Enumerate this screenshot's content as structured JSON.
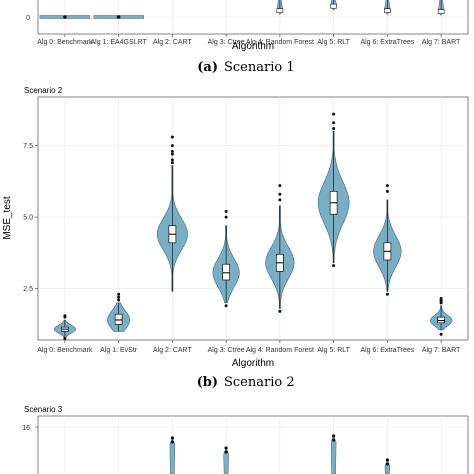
{
  "chart_data": [
    {
      "panel": "Scenario 1 (partial, top cropped)",
      "type": "violin",
      "xlabel": "Algorithm",
      "caption_letter": "(a)",
      "caption_text": "Scenario 1",
      "categories": [
        "Alg 0: Benchmark",
        "Alg 1: EA4GSLRT",
        "Alg 2: CART",
        "Alg 3: Ctree",
        "Alg 4: Random Forest",
        "Alg 5: RLT",
        "Alg 6: ExtraTrees",
        "Alg 7: BART"
      ],
      "ytick_labels": [
        "0"
      ],
      "medians": [
        0.0,
        0.0,
        null,
        null,
        0.35,
        0.6,
        0.35,
        0.3
      ],
      "shown": [
        true,
        true,
        false,
        false,
        true,
        true,
        true,
        true
      ]
    },
    {
      "title": "Scenario 2",
      "type": "violin",
      "xlabel": "Algorithm",
      "ylabel": "MSE_test",
      "caption_letter": "(b)",
      "caption_text": "Scenario 2",
      "ylim": [
        0.7,
        9.2
      ],
      "yticks": [
        2.5,
        5.0,
        7.5
      ],
      "ytick_labels": [
        "2.5",
        "5.0",
        "7.5"
      ],
      "categories": [
        "Alg 0: Benchmark",
        "Alg 1: EvStr",
        "Alg 2: CART",
        "Alg 3: Ctree",
        "Alg 4: Random Forest",
        "Alg 5: RLT",
        "Alg 6: ExtraTrees",
        "Alg 7: BART"
      ],
      "series": [
        {
          "min": 0.8,
          "q1": 1.0,
          "median": 1.08,
          "q3": 1.15,
          "max": 1.4,
          "outliers": [
            0.75,
            1.5,
            1.55
          ]
        },
        {
          "min": 1.0,
          "q1": 1.25,
          "median": 1.4,
          "q3": 1.6,
          "max": 2.0,
          "outliers": [
            2.1,
            2.2,
            2.3
          ]
        },
        {
          "min": 2.4,
          "q1": 4.1,
          "median": 4.4,
          "q3": 4.7,
          "max": 6.8,
          "outliers": [
            7.2,
            7.5,
            7.8,
            6.9,
            7.0,
            7.3
          ]
        },
        {
          "min": 2.0,
          "q1": 2.8,
          "median": 3.05,
          "q3": 3.35,
          "max": 4.7,
          "outliers": [
            5.0,
            5.2,
            1.9
          ]
        },
        {
          "min": 1.8,
          "q1": 3.1,
          "median": 3.4,
          "q3": 3.7,
          "max": 5.4,
          "outliers": [
            5.6,
            5.8,
            6.1,
            1.7
          ]
        },
        {
          "min": 3.4,
          "q1": 5.1,
          "median": 5.5,
          "q3": 5.9,
          "max": 8.0,
          "outliers": [
            8.3,
            8.6,
            3.3,
            8.1
          ]
        },
        {
          "min": 2.4,
          "q1": 3.5,
          "median": 3.8,
          "q3": 4.1,
          "max": 5.6,
          "outliers": [
            5.9,
            6.1,
            2.3
          ]
        },
        {
          "min": 1.05,
          "q1": 1.3,
          "median": 1.38,
          "q3": 1.5,
          "max": 1.9,
          "outliers": [
            2.0,
            2.05,
            2.1,
            2.15,
            0.9
          ]
        }
      ]
    },
    {
      "title": "Scenario 3",
      "type": "violin",
      "caption_text": "",
      "ytick_labels": [
        "16"
      ],
      "note": "panel cropped at bottom"
    }
  ],
  "colors": {
    "violin_fill": "#7aaec4",
    "violin_stroke": "#3c6a7e",
    "grid": "#e6e6e6",
    "axis": "#333333",
    "box_fill": "#ffffff"
  }
}
